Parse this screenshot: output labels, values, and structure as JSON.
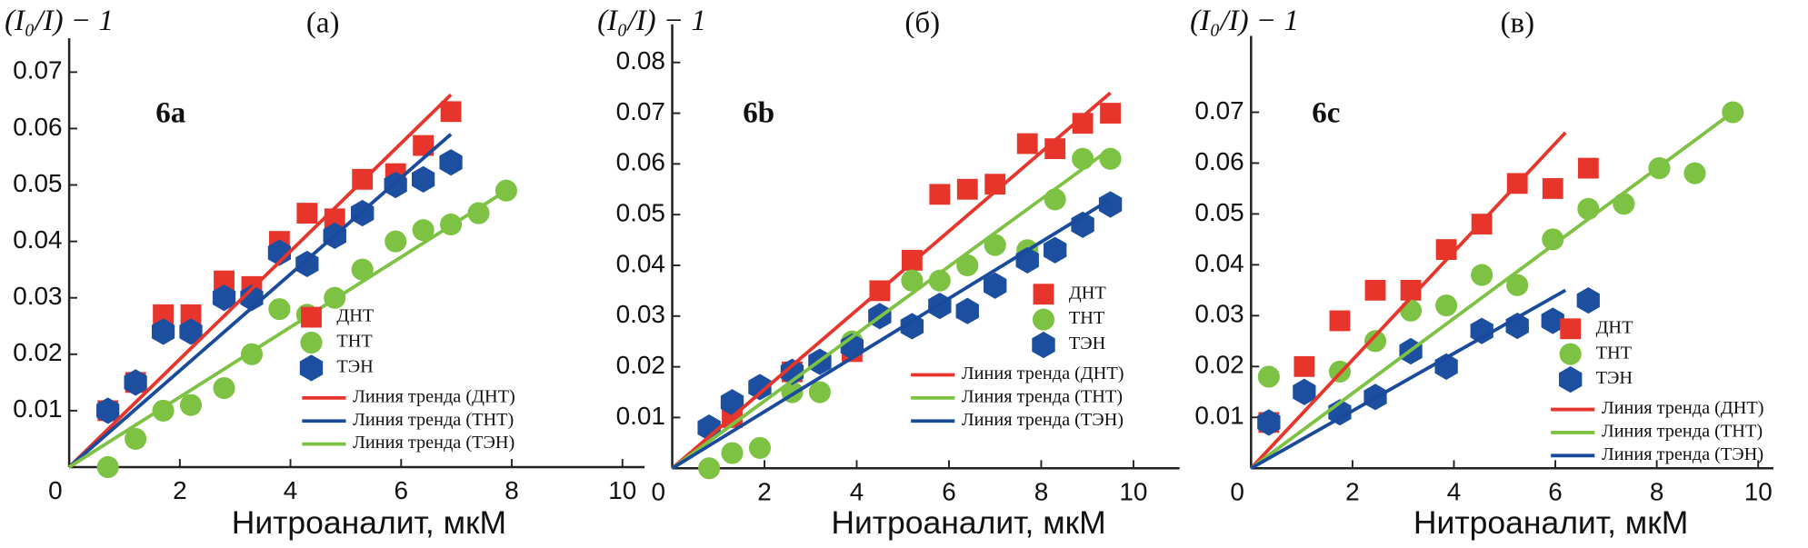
{
  "chart_data": [
    {
      "type": "scatter",
      "panel_label": "(а)",
      "inset_label": "6a",
      "y_label": "(I₀/I) − 1",
      "x_label": "Нитроаналит, мкМ",
      "xlim": [
        0,
        10.4
      ],
      "ylim": [
        0,
        0.076
      ],
      "xticks": [
        0,
        2,
        4,
        6,
        8,
        10
      ],
      "yticks": [
        0.01,
        0.02,
        0.03,
        0.04,
        0.05,
        0.06,
        0.07
      ],
      "series": [
        {
          "name": "ДНТ",
          "kind": "scatter",
          "marker": "square",
          "color": "#e8352b",
          "x": [
            0.7,
            1.2,
            1.7,
            2.2,
            2.8,
            3.3,
            3.8,
            4.3,
            4.8,
            5.3,
            5.9,
            6.4,
            6.9
          ],
          "values": [
            0.01,
            0.015,
            0.027,
            0.027,
            0.033,
            0.032,
            0.04,
            0.045,
            0.044,
            0.051,
            0.052,
            0.057,
            0.063
          ]
        },
        {
          "name": "ТНТ",
          "kind": "scatter",
          "marker": "circle",
          "color": "#7dc242",
          "x": [
            0.7,
            1.2,
            1.7,
            2.2,
            2.8,
            3.3,
            3.8,
            4.3,
            4.8,
            5.3,
            5.9,
            6.4,
            6.9,
            7.4,
            7.9
          ],
          "values": [
            0.0,
            0.005,
            0.01,
            0.011,
            0.014,
            0.02,
            0.028,
            0.027,
            0.03,
            0.035,
            0.04,
            0.042,
            0.043,
            0.045,
            0.049
          ]
        },
        {
          "name": "ТЭН",
          "kind": "scatter",
          "marker": "hexagon",
          "color": "#1c4fa0",
          "x": [
            0.7,
            1.2,
            1.7,
            2.2,
            2.8,
            3.3,
            3.8,
            4.3,
            4.8,
            5.3,
            5.9,
            6.4,
            6.9
          ],
          "values": [
            0.01,
            0.015,
            0.024,
            0.024,
            0.03,
            0.03,
            0.038,
            0.036,
            0.041,
            0.045,
            0.05,
            0.051,
            0.054
          ]
        },
        {
          "name": "Линия тренда (ДНТ)",
          "kind": "line",
          "color": "#e8352b",
          "x": [
            0,
            6.9
          ],
          "values": [
            0,
            0.066
          ]
        },
        {
          "name": "Линия тренда (ТНТ)",
          "kind": "line",
          "color": "#1a4a9c",
          "x": [
            0,
            6.9
          ],
          "values": [
            0,
            0.059
          ]
        },
        {
          "name": "Линия тренда (ТЭН)",
          "kind": "line",
          "color": "#7dc242",
          "x": [
            0,
            7.9
          ],
          "values": [
            0,
            0.049
          ]
        }
      ]
    },
    {
      "type": "scatter",
      "panel_label": "(б)",
      "inset_label": "6b",
      "y_label": "(I₀/I) − 1",
      "x_label": "Нитроаналит, мкМ",
      "xlim": [
        0,
        11
      ],
      "ylim": [
        0,
        0.0875
      ],
      "xticks": [
        0,
        2,
        4,
        6,
        8,
        10
      ],
      "yticks": [
        0.01,
        0.02,
        0.03,
        0.04,
        0.05,
        0.06,
        0.07,
        0.08
      ],
      "series": [
        {
          "name": "ДНТ",
          "kind": "scatter",
          "marker": "square",
          "color": "#e8352b",
          "x": [
            1.3,
            2.6,
            3.9,
            4.5,
            5.2,
            5.8,
            6.4,
            7.0,
            7.7,
            8.3,
            8.9,
            9.5
          ],
          "values": [
            0.01,
            0.019,
            0.023,
            0.035,
            0.041,
            0.054,
            0.055,
            0.056,
            0.064,
            0.063,
            0.068,
            0.07
          ]
        },
        {
          "name": "ТНТ",
          "kind": "scatter",
          "marker": "circle",
          "color": "#7dc242",
          "x": [
            0.8,
            1.3,
            1.9,
            2.6,
            3.2,
            3.9,
            5.2,
            5.8,
            6.4,
            7.0,
            7.7,
            8.3,
            8.9,
            9.5
          ],
          "values": [
            0.0,
            0.003,
            0.004,
            0.015,
            0.015,
            0.025,
            0.037,
            0.037,
            0.04,
            0.044,
            0.043,
            0.053,
            0.061,
            0.061
          ]
        },
        {
          "name": "ТЭН",
          "kind": "scatter",
          "marker": "hexagon",
          "color": "#1c4fa0",
          "x": [
            0.8,
            1.3,
            1.9,
            2.6,
            3.2,
            3.9,
            4.5,
            5.2,
            5.8,
            6.4,
            7.0,
            7.7,
            8.3,
            8.9,
            9.5
          ],
          "values": [
            0.008,
            0.013,
            0.016,
            0.019,
            0.021,
            0.024,
            0.03,
            0.028,
            0.032,
            0.031,
            0.036,
            0.041,
            0.043,
            0.048,
            0.052
          ]
        },
        {
          "name": "Линия тренда (ДНТ)",
          "kind": "line",
          "color": "#e8352b",
          "x": [
            0,
            9.5
          ],
          "values": [
            0,
            0.074
          ]
        },
        {
          "name": "Линия тренда (ТНТ)",
          "kind": "line",
          "color": "#7dc242",
          "x": [
            0,
            9.5
          ],
          "values": [
            0,
            0.063
          ]
        },
        {
          "name": "Линия тренда (ТЭН)",
          "kind": "line",
          "color": "#1a4a9c",
          "x": [
            0,
            9.5
          ],
          "values": [
            0,
            0.053
          ]
        }
      ]
    },
    {
      "type": "scatter",
      "panel_label": "(в)",
      "inset_label": "6c",
      "y_label": "(I₀/I) − 1",
      "x_label": "Нитроаналит, мкМ",
      "xlim": [
        0,
        10.3
      ],
      "ylim": [
        0,
        0.085
      ],
      "xticks": [
        0,
        2,
        4,
        6,
        8,
        10
      ],
      "yticks": [
        0.01,
        0.02,
        0.03,
        0.04,
        0.05,
        0.06,
        0.07
      ],
      "series": [
        {
          "name": "ДНТ",
          "kind": "scatter",
          "marker": "square",
          "color": "#e8352b",
          "x": [
            0.35,
            1.05,
            1.75,
            2.45,
            3.15,
            3.85,
            4.55,
            5.25,
            5.95,
            6.65
          ],
          "values": [
            0.009,
            0.02,
            0.029,
            0.035,
            0.035,
            0.043,
            0.048,
            0.056,
            0.055,
            0.059
          ]
        },
        {
          "name": "ТНТ",
          "kind": "scatter",
          "marker": "circle",
          "color": "#7dc242",
          "x": [
            0.35,
            1.75,
            2.45,
            3.15,
            3.85,
            4.55,
            5.25,
            5.95,
            6.65,
            7.35,
            8.05,
            8.75,
            9.5
          ],
          "values": [
            0.018,
            0.019,
            0.025,
            0.031,
            0.032,
            0.038,
            0.036,
            0.045,
            0.051,
            0.052,
            0.059,
            0.058,
            0.07
          ]
        },
        {
          "name": "ТЭН",
          "kind": "scatter",
          "marker": "hexagon",
          "color": "#1c4fa0",
          "x": [
            0.35,
            1.05,
            1.75,
            2.45,
            3.15,
            3.85,
            4.55,
            5.25,
            5.95,
            6.65
          ],
          "values": [
            0.009,
            0.015,
            0.011,
            0.014,
            0.023,
            0.02,
            0.027,
            0.028,
            0.029,
            0.033
          ]
        },
        {
          "name": "Линия тренда (ДНТ)",
          "kind": "line",
          "color": "#e8352b",
          "x": [
            0,
            6.2
          ],
          "values": [
            0,
            0.066
          ]
        },
        {
          "name": "Линия тренда (ТНТ)",
          "kind": "line",
          "color": "#7dc242",
          "x": [
            0,
            9.5
          ],
          "values": [
            0,
            0.07
          ]
        },
        {
          "name": "Линия тренда (ТЭН)",
          "kind": "line",
          "color": "#1a4a9c",
          "x": [
            0,
            6.2
          ],
          "values": [
            0,
            0.035
          ]
        }
      ]
    }
  ]
}
